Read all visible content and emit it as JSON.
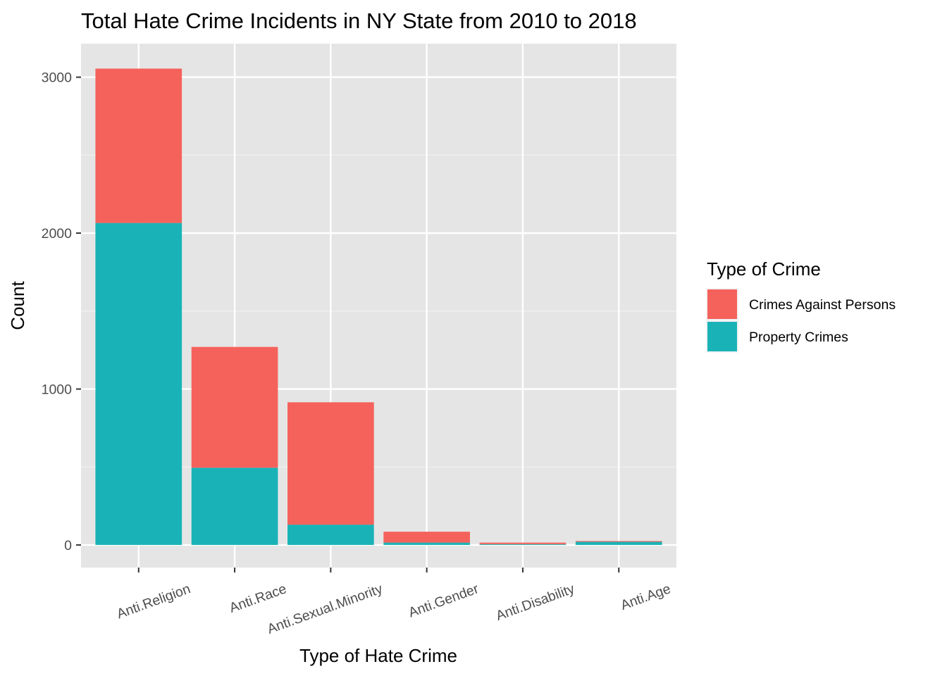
{
  "chart_data": {
    "type": "bar",
    "stacked": true,
    "title": "Total Hate Crime Incidents in NY State from 2010 to 2018",
    "xlabel": "Type of Hate Crime",
    "ylabel": "Count",
    "categories": [
      "Anti.Religion",
      "Anti.Race",
      "Anti.Sexual.Minority",
      "Anti.Gender",
      "Anti.Disability",
      "Anti.Age"
    ],
    "series": [
      {
        "name": "Property Crimes",
        "color": "#19B3B7",
        "values": [
          2065,
          495,
          130,
          15,
          5,
          20
        ]
      },
      {
        "name": "Crimes Against Persons",
        "color": "#F5625C",
        "values": [
          990,
          775,
          785,
          70,
          10,
          5
        ]
      }
    ],
    "ylim": [
      -145,
      3215
    ],
    "yticks": [
      0,
      1000,
      2000,
      3000
    ],
    "grid": true,
    "legend": {
      "title": "Type of Crime",
      "position": "right",
      "entries": [
        {
          "label": "Crimes Against Persons",
          "color": "#F5625C"
        },
        {
          "label": "Property Crimes",
          "color": "#19B3B7"
        }
      ]
    }
  }
}
